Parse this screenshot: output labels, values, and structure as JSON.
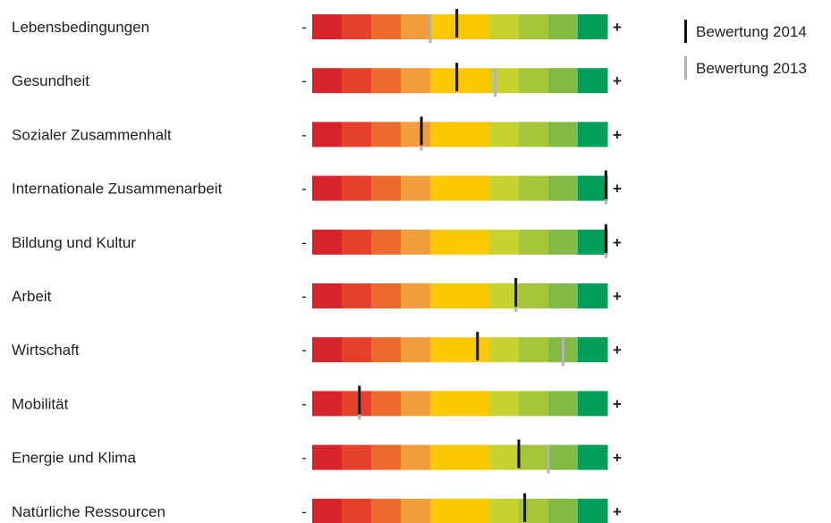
{
  "chart_data": {
    "type": "bar",
    "title": "",
    "scale": {
      "min": 0,
      "max": 10,
      "min_label": "-",
      "max_label": "+"
    },
    "segment_colors": [
      "#d8232a",
      "#e6402a",
      "#ec6a2c",
      "#f39c3c",
      "#fcc800",
      "#fcc800",
      "#c8d22e",
      "#a6c63a",
      "#82bb44",
      "#00a05a"
    ],
    "legend": {
      "position": "top-right"
    },
    "series": [
      {
        "name": "Bewertung 2014",
        "color": "#111111"
      },
      {
        "name": "Bewertung 2013",
        "color": "#b3b3b3"
      }
    ],
    "categories": [
      "Lebensbedingungen",
      "Gesundheit",
      "Sozialer Zusammenhalt",
      "Internationale Zusammenarbeit",
      "Bildung und Kultur",
      "Arbeit",
      "Wirtschaft",
      "Mobilität",
      "Energie und Klima",
      "Natürliche Ressourcen"
    ],
    "values_2014": [
      4.9,
      4.9,
      3.7,
      9.95,
      9.95,
      6.9,
      5.6,
      1.6,
      7.0,
      7.2
    ],
    "values_2013": [
      4.0,
      6.2,
      3.7,
      9.95,
      9.95,
      6.9,
      8.5,
      1.6,
      8.0,
      7.2
    ]
  }
}
